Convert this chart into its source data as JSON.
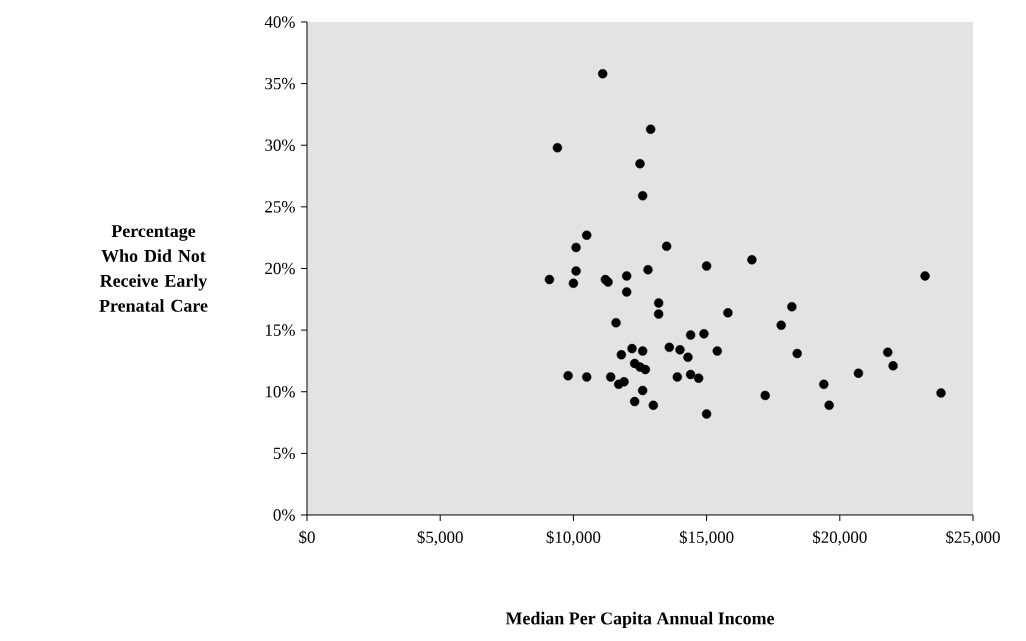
{
  "chart_data": {
    "type": "scatter",
    "xlabel": "Median Per Capita Annual Income",
    "ylabel": "Percentage Who Did Not Receive Early Prenatal Care",
    "x": [
      11100,
      12900,
      9400,
      12500,
      12600,
      10500,
      10100,
      13500,
      16700,
      15000,
      12800,
      10100,
      12000,
      9100,
      10000,
      11200,
      11300,
      12000,
      13200,
      13200,
      15800,
      18200,
      11600,
      17800,
      14400,
      14900,
      13600,
      14000,
      14300,
      15400,
      18400,
      12200,
      12600,
      11800,
      12300,
      12500,
      12700,
      9800,
      10500,
      11400,
      11700,
      11900,
      13900,
      14400,
      14700,
      12600,
      12300,
      13000,
      17200,
      15000,
      23200,
      21800,
      22000,
      20700,
      19400,
      19600,
      23800
    ],
    "values": [
      35.8,
      31.3,
      29.8,
      28.5,
      25.9,
      22.7,
      21.7,
      21.8,
      20.7,
      20.2,
      19.9,
      19.8,
      19.4,
      19.1,
      18.8,
      19.1,
      18.9,
      18.1,
      17.2,
      16.3,
      16.4,
      16.9,
      15.6,
      15.4,
      14.6,
      14.7,
      13.6,
      13.4,
      12.8,
      13.3,
      13.1,
      13.5,
      13.3,
      13.0,
      12.3,
      12.0,
      11.8,
      11.3,
      11.2,
      11.2,
      10.6,
      10.8,
      11.2,
      11.4,
      11.1,
      10.1,
      9.2,
      8.9,
      9.7,
      8.2,
      19.4,
      13.2,
      12.1,
      11.5,
      10.6,
      8.9,
      9.9
    ],
    "color": "#000000",
    "marker": "circle",
    "xlim": [
      0,
      25000
    ],
    "xticks": [
      {
        "value": 0,
        "label": "$0"
      },
      {
        "value": 5000,
        "label": "$5,000"
      },
      {
        "value": 10000,
        "label": "$10,000"
      },
      {
        "value": 15000,
        "label": "$15,000"
      },
      {
        "value": 20000,
        "label": "$20,000"
      },
      {
        "value": 25000,
        "label": "$25,000"
      }
    ],
    "ylim": [
      0,
      40
    ],
    "yticks": [
      {
        "value": 0,
        "label": "0%"
      },
      {
        "value": 5,
        "label": "5%"
      },
      {
        "value": 10,
        "label": "10%"
      },
      {
        "value": 15,
        "label": "15%"
      },
      {
        "value": 20,
        "label": "20%"
      },
      {
        "value": 25,
        "label": "25%"
      },
      {
        "value": 30,
        "label": "30%"
      },
      {
        "value": 35,
        "label": "35%"
      },
      {
        "value": 40,
        "label": "40%"
      }
    ]
  }
}
